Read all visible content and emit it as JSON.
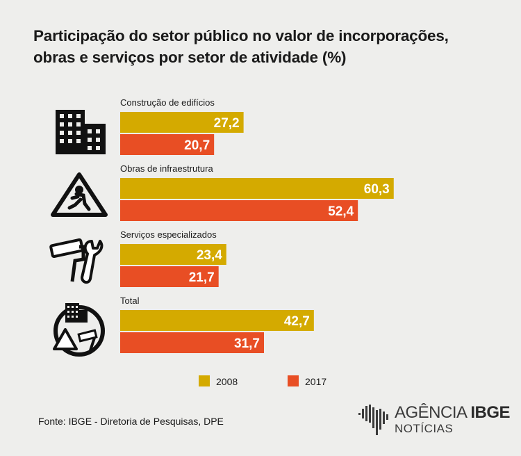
{
  "title": {
    "line1": "Participação do setor público no valor de incorporações,",
    "line2": "obras e serviços por setor de atividade (%)"
  },
  "chart_data": {
    "type": "bar",
    "orientation": "horizontal",
    "title": "Participação do setor público no valor de incorporações, obras e serviços por setor de atividade (%)",
    "categories": [
      "Construção de edifícios",
      "Obras de infraestrutura",
      "Serviços especializados",
      "Total"
    ],
    "series": [
      {
        "name": "2008",
        "color": "#d4aa00",
        "values": [
          27.2,
          60.3,
          23.4,
          42.7
        ],
        "labels": [
          "27,2",
          "60,3",
          "23,4",
          "42,7"
        ]
      },
      {
        "name": "2017",
        "color": "#e84e24",
        "values": [
          20.7,
          52.4,
          21.7,
          31.7
        ],
        "labels": [
          "20,7",
          "52,4",
          "21,7",
          "31,7"
        ]
      }
    ],
    "xlim": [
      0,
      100
    ],
    "grid": false,
    "legend_position": "bottom",
    "icons": [
      "building-icon",
      "worker-warning-sign-icon",
      "tools-icon",
      "total-composite-icon"
    ]
  },
  "source": "Fonte: IBGE - Diretoria de Pesquisas, DPE",
  "logo": {
    "prefix": "AGÊNCIA ",
    "brand": "IBGE",
    "sub": "NOTÍCIAS"
  }
}
